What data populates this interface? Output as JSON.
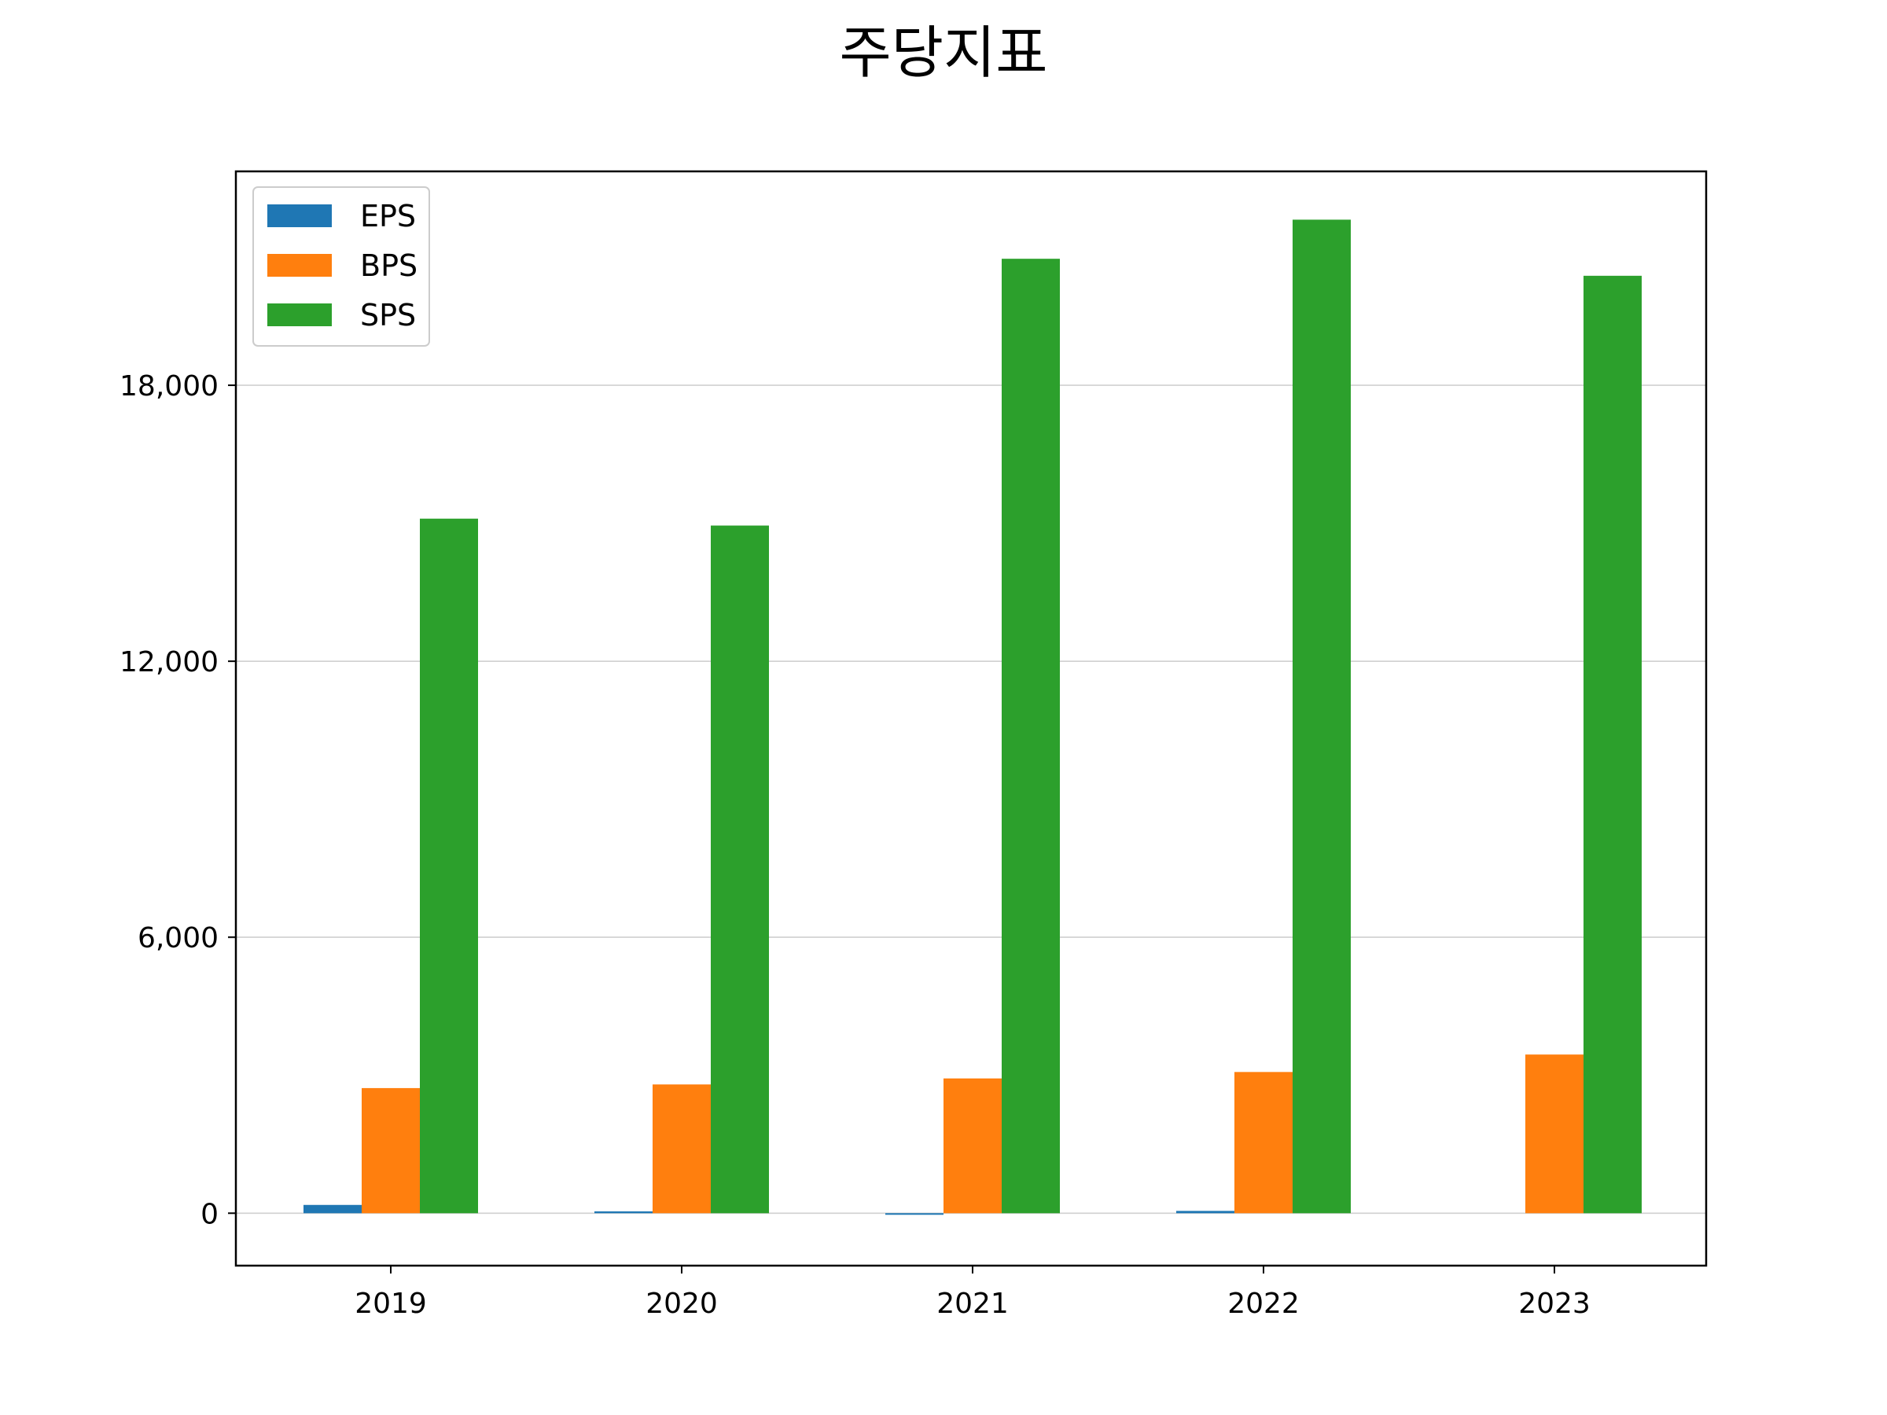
{
  "chart_data": {
    "type": "bar",
    "title": "주당지표",
    "xlabel": "",
    "ylabel": "",
    "categories": [
      "2019",
      "2020",
      "2021",
      "2022",
      "2023"
    ],
    "series": [
      {
        "name": "EPS",
        "color": "#1f77b4",
        "values": [
          180,
          40,
          -30,
          50,
          0
        ]
      },
      {
        "name": "BPS",
        "color": "#ff7f0e",
        "values": [
          2720,
          2800,
          2930,
          3070,
          3450
        ]
      },
      {
        "name": "SPS",
        "color": "#2ca02c",
        "values": [
          15100,
          14950,
          20750,
          21600,
          20380
        ]
      }
    ],
    "yticks": [
      0,
      6000,
      12000,
      18000
    ],
    "ytick_labels": [
      "0",
      "6,000",
      "12,000",
      "18,000"
    ],
    "ylim": [
      -1140,
      22650
    ],
    "grid": "y",
    "legend_position": "upper left"
  }
}
